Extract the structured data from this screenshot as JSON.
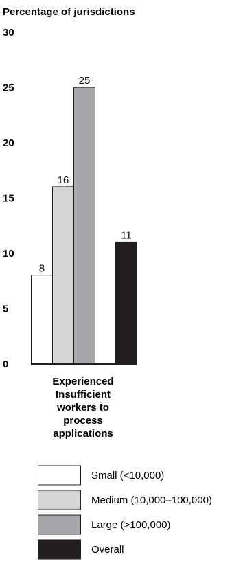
{
  "chart_data": {
    "type": "bar",
    "title": "Percentage of jurisdictions",
    "ylabel": "",
    "ylim": [
      0,
      30
    ],
    "yticks": [
      0,
      5,
      10,
      15,
      20,
      25,
      30
    ],
    "categories": [
      "Experienced Insufficient workers to process applications"
    ],
    "category_lines": [
      "Experienced",
      "Insufficient",
      "workers to",
      "process",
      "applications"
    ],
    "series": [
      {
        "name": "Small (<10,000)",
        "values": [
          8
        ],
        "color": "#ffffff"
      },
      {
        "name": "Medium (10,000–100,000)",
        "values": [
          16
        ],
        "color": "#d4d5d7"
      },
      {
        "name": "Large (>100,000)",
        "values": [
          25
        ],
        "color": "#a5a7aa"
      },
      {
        "name": "Overall",
        "values": [
          11
        ],
        "color": "#231f20"
      }
    ],
    "grid": false,
    "legend_position": "bottom"
  }
}
